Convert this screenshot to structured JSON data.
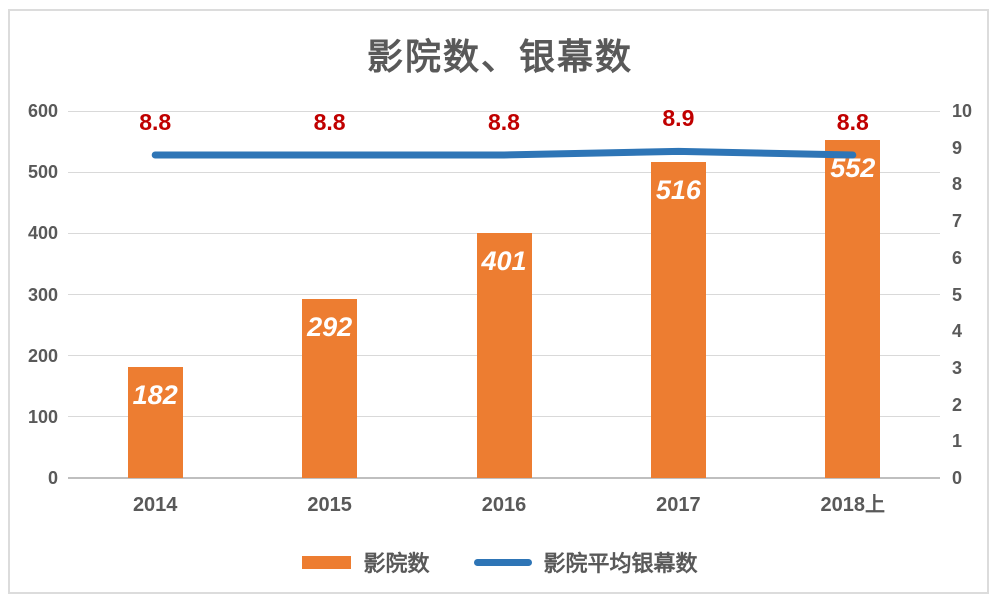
{
  "chart_data": {
    "type": "combo",
    "title": "影院数、银幕数",
    "categories": [
      "2014",
      "2015",
      "2016",
      "2017",
      "2018上"
    ],
    "series": [
      {
        "name": "影院数",
        "type": "bar",
        "axis": "left",
        "color": "#ED7D31",
        "values": [
          182,
          292,
          401,
          516,
          552
        ],
        "label_color": "#FFFFFF",
        "label_style": "bold-italic-inside-top"
      },
      {
        "name": "影院平均银幕数",
        "type": "line",
        "axis": "right",
        "color": "#2E75B6",
        "values": [
          8.8,
          8.8,
          8.8,
          8.9,
          8.8
        ],
        "label_color": "#C00000",
        "label_style": "bold-above"
      }
    ],
    "left_axis": {
      "min": 0,
      "max": 600,
      "step": 100,
      "ticks": [
        "0",
        "100",
        "200",
        "300",
        "400",
        "500",
        "600"
      ]
    },
    "right_axis": {
      "min": 0,
      "max": 10,
      "step": 1,
      "ticks": [
        "0",
        "1",
        "2",
        "3",
        "4",
        "5",
        "6",
        "7",
        "8",
        "9",
        "10"
      ]
    },
    "legend": {
      "position": "bottom",
      "entries": [
        "影院数",
        "影院平均银幕数"
      ]
    },
    "grid": true,
    "styles": {
      "title_color": "#595959",
      "axis_text_color": "#595959",
      "grid_color": "#D9D9D9",
      "axis_line_color": "#BFBFBF",
      "frame_color": "#DCDCDC",
      "background": "#FFFFFF"
    }
  }
}
